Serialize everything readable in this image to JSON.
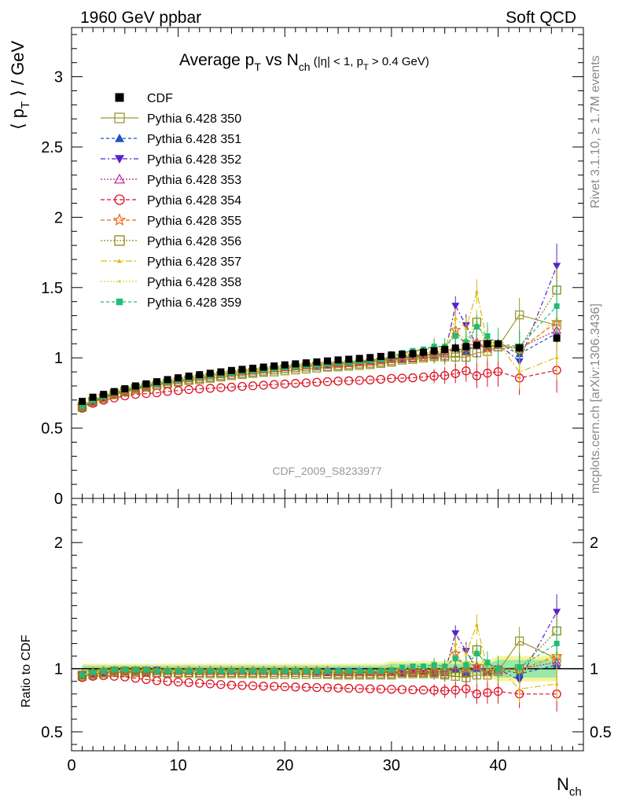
{
  "header": {
    "left": "1960 GeV ppbar",
    "right": "Soft QCD",
    "title_main": "Average p",
    "title_sub1": "T",
    "title_vs": " vs N",
    "title_sub2": "ch",
    "title_cut": " (|η| < 1, p",
    "title_sub3": "T",
    "title_cut2": " > 0.4 GeV)"
  },
  "side": {
    "rivet": "Rivet 3.1.10, ≥ 1.7M events",
    "mcplots": "mcplots.cern.ch [arXiv:1306.3436]"
  },
  "axes": {
    "ylabel_main": "⟨ p",
    "ylabel_sub": "T",
    "ylabel_rest": " ⟩ / GeV",
    "ylabel_ratio": "Ratio to CDF",
    "xlabel": "N",
    "xlabel_sub": "ch",
    "watermark": "CDF_2009_S8233977",
    "yticks_main": [
      "0",
      "0.5",
      "1",
      "1.5",
      "2",
      "2.5",
      "3"
    ],
    "yticks_ratio": [
      "0.5",
      "1",
      "2"
    ],
    "xticks": [
      "0",
      "10",
      "20",
      "30",
      "40"
    ]
  },
  "chart_data": {
    "type": "scatter",
    "xlim": [
      0,
      48
    ],
    "ylim_main": [
      0,
      3.35
    ],
    "ylim_ratio": [
      0.35,
      2.35
    ],
    "x": [
      1,
      2,
      3,
      4,
      5,
      6,
      7,
      8,
      9,
      10,
      11,
      12,
      13,
      14,
      15,
      16,
      17,
      18,
      19,
      20,
      21,
      22,
      23,
      24,
      25,
      26,
      27,
      28,
      29,
      30,
      31,
      32,
      33,
      34,
      35,
      36,
      37,
      38,
      39,
      40,
      42,
      45.5
    ],
    "cdf": [
      0.69,
      0.72,
      0.74,
      0.76,
      0.78,
      0.8,
      0.815,
      0.83,
      0.845,
      0.858,
      0.87,
      0.88,
      0.89,
      0.9,
      0.91,
      0.918,
      0.926,
      0.934,
      0.942,
      0.95,
      0.957,
      0.964,
      0.971,
      0.978,
      0.985,
      0.99,
      0.996,
      1.002,
      1.01,
      1.02,
      1.025,
      1.03,
      1.04,
      1.05,
      1.06,
      1.07,
      1.08,
      1.09,
      1.1,
      1.1,
      1.07,
      1.14
    ],
    "series": [
      {
        "name": "CDF",
        "color": "#000000",
        "marker": "square-filled",
        "dash": "none"
      },
      {
        "name": "Pythia 6.428 350",
        "color": "#999933",
        "marker": "square-open",
        "dash": "solid"
      },
      {
        "name": "Pythia 6.428 351",
        "color": "#1a55c0",
        "marker": "triangle-up-filled",
        "dash": "4,3"
      },
      {
        "name": "Pythia 6.428 352",
        "color": "#5522cc",
        "marker": "triangle-down-filled",
        "dash": "6,3,2,3"
      },
      {
        "name": "Pythia 6.428 353",
        "color": "#bb2299",
        "marker": "triangle-up-open",
        "dash": "2,2"
      },
      {
        "name": "Pythia 6.428 354",
        "color": "#dd1122",
        "marker": "circle-open",
        "dash": "5,3"
      },
      {
        "name": "Pythia 6.428 355",
        "color": "#ee6611",
        "marker": "star-open",
        "dash": "5,3"
      },
      {
        "name": "Pythia 6.428 356",
        "color": "#888811",
        "marker": "square-open",
        "dash": "2,2"
      },
      {
        "name": "Pythia 6.428 357",
        "color": "#ddbb11",
        "marker": "tri-dot",
        "dash": "8,3,2,3"
      },
      {
        "name": "Pythia 6.428 358",
        "color": "#ccdd22",
        "marker": "dot",
        "dash": "2,2"
      },
      {
        "name": "Pythia 6.428 359",
        "color": "#22bb77",
        "marker": "square-filled-small",
        "dash": "4,3"
      }
    ],
    "mc_ratio": {
      "350": [
        0.94,
        0.95,
        0.96,
        0.97,
        0.97,
        0.97,
        0.97,
        0.97,
        0.965,
        0.965,
        0.965,
        0.96,
        0.96,
        0.96,
        0.96,
        0.96,
        0.96,
        0.96,
        0.955,
        0.955,
        0.955,
        0.955,
        0.955,
        0.955,
        0.95,
        0.95,
        0.95,
        0.95,
        0.95,
        0.95,
        0.96,
        0.96,
        0.96,
        0.96,
        0.95,
        0.94,
        0.93,
        0.95,
        0.95,
        0.98,
        1.22,
        1.08
      ],
      "351": [
        0.94,
        0.96,
        0.97,
        0.98,
        0.98,
        0.98,
        0.98,
        0.98,
        0.98,
        0.98,
        0.98,
        0.98,
        0.98,
        0.98,
        0.98,
        0.98,
        0.98,
        0.98,
        0.98,
        0.98,
        0.98,
        0.98,
        0.97,
        0.97,
        0.97,
        0.97,
        0.97,
        0.97,
        0.97,
        0.97,
        0.97,
        0.98,
        0.98,
        0.97,
        0.98,
        1.0,
        0.97,
        1.0,
        0.97,
        1.0,
        0.96,
        1.03
      ],
      "352": [
        0.95,
        0.97,
        0.98,
        0.99,
        0.99,
        0.99,
        0.99,
        0.99,
        0.98,
        0.98,
        0.98,
        0.98,
        0.98,
        0.98,
        0.98,
        0.98,
        0.98,
        0.98,
        0.98,
        0.98,
        0.98,
        0.98,
        0.98,
        0.98,
        0.98,
        0.98,
        0.98,
        0.97,
        0.97,
        0.98,
        0.97,
        0.98,
        0.98,
        0.98,
        0.97,
        1.28,
        1.14,
        1.0,
        0.98,
        1.0,
        0.91,
        1.45
      ],
      "353": [
        0.95,
        0.96,
        0.97,
        0.98,
        0.98,
        0.98,
        0.98,
        0.98,
        0.98,
        0.98,
        0.98,
        0.98,
        0.98,
        0.98,
        0.98,
        0.98,
        0.98,
        0.98,
        0.98,
        0.98,
        0.98,
        0.98,
        0.98,
        0.97,
        0.97,
        0.97,
        0.97,
        0.97,
        0.97,
        0.97,
        0.97,
        0.97,
        0.98,
        0.97,
        0.97,
        1.0,
        0.97,
        1.02,
        0.98,
        0.99,
        1.0,
        1.05
      ],
      "354": [
        0.93,
        0.94,
        0.945,
        0.94,
        0.935,
        0.925,
        0.915,
        0.905,
        0.9,
        0.895,
        0.89,
        0.885,
        0.88,
        0.875,
        0.87,
        0.868,
        0.865,
        0.862,
        0.86,
        0.857,
        0.855,
        0.853,
        0.851,
        0.849,
        0.847,
        0.845,
        0.843,
        0.841,
        0.839,
        0.837,
        0.835,
        0.833,
        0.831,
        0.829,
        0.825,
        0.83,
        0.84,
        0.8,
        0.81,
        0.82,
        0.8,
        0.8
      ],
      "355": [
        0.95,
        0.97,
        0.98,
        0.98,
        0.98,
        0.98,
        0.98,
        0.98,
        0.98,
        0.98,
        0.98,
        0.98,
        0.98,
        0.98,
        0.98,
        0.98,
        0.98,
        0.98,
        0.98,
        0.98,
        0.98,
        0.98,
        0.98,
        0.98,
        0.97,
        0.97,
        0.97,
        0.97,
        0.97,
        0.97,
        0.98,
        0.98,
        0.97,
        0.98,
        0.99,
        1.12,
        1.0,
        1.02,
        0.97,
        1.0,
        0.99,
        1.1
      ],
      "356": [
        0.95,
        0.96,
        0.97,
        0.98,
        0.98,
        0.98,
        0.98,
        0.97,
        0.97,
        0.97,
        0.97,
        0.97,
        0.97,
        0.97,
        0.97,
        0.97,
        0.97,
        0.97,
        0.97,
        0.97,
        0.97,
        0.97,
        0.97,
        0.96,
        0.96,
        0.96,
        0.96,
        0.96,
        0.96,
        0.96,
        0.97,
        0.97,
        0.97,
        0.97,
        0.96,
        0.97,
        0.97,
        1.15,
        1.0,
        0.98,
        1.0,
        1.3
      ],
      "357": [
        0.95,
        0.97,
        0.98,
        0.99,
        0.99,
        0.99,
        0.99,
        0.99,
        0.99,
        0.98,
        0.98,
        0.98,
        0.98,
        0.98,
        0.98,
        0.98,
        0.98,
        0.98,
        0.98,
        0.98,
        0.98,
        0.98,
        0.98,
        0.98,
        0.98,
        0.98,
        0.98,
        0.98,
        0.99,
        1.02,
        1.0,
        1.02,
        1.01,
        1.04,
        1.0,
        1.2,
        1.12,
        1.35,
        1.0,
        1.01,
        0.84,
        0.88
      ],
      "358": [
        0.95,
        0.97,
        0.98,
        0.99,
        0.99,
        0.99,
        0.99,
        0.98,
        0.98,
        0.98,
        0.98,
        0.98,
        0.98,
        0.98,
        0.98,
        0.98,
        0.98,
        0.98,
        0.98,
        0.98,
        0.98,
        0.98,
        0.98,
        0.98,
        0.98,
        0.98,
        0.98,
        0.98,
        0.98,
        0.99,
        1.0,
        1.01,
        1.0,
        1.03,
        1.01,
        1.1,
        1.05,
        1.15,
        0.99,
        1.0,
        0.97,
        1.12
      ],
      "359": [
        0.95,
        0.97,
        0.98,
        0.99,
        0.99,
        0.99,
        0.99,
        0.98,
        0.98,
        0.98,
        0.98,
        0.98,
        0.98,
        0.98,
        0.98,
        0.98,
        0.98,
        0.98,
        0.98,
        0.98,
        0.98,
        0.98,
        0.98,
        0.98,
        0.98,
        0.98,
        0.98,
        0.98,
        0.98,
        0.99,
        1.01,
        1.02,
        1.02,
        1.03,
        1.02,
        1.08,
        1.03,
        1.12,
        1.05,
        1.0,
        1.01,
        1.2
      ]
    }
  }
}
